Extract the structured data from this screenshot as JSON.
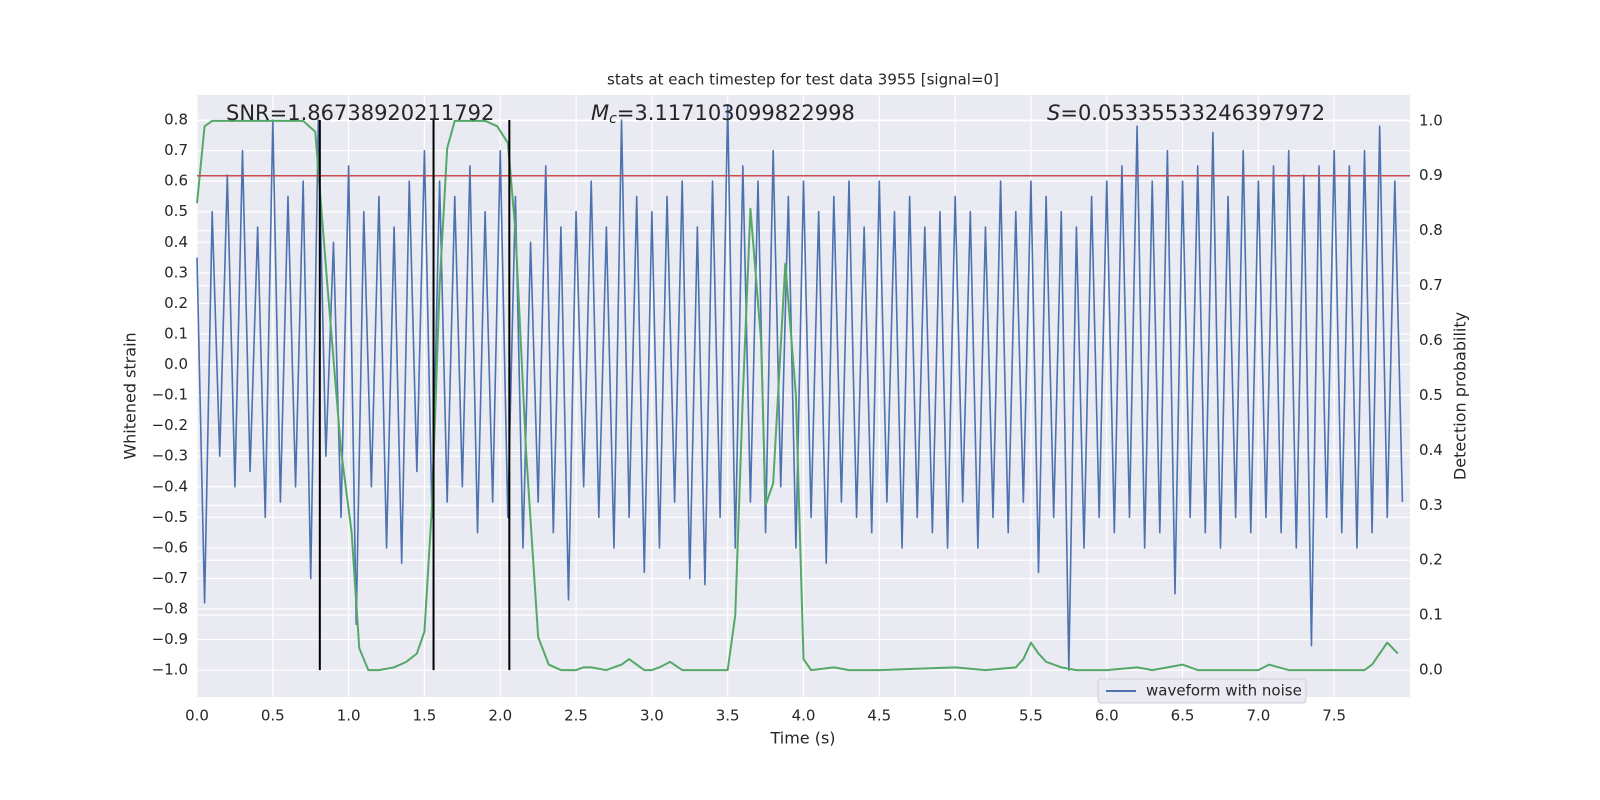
{
  "chart_data": {
    "type": "line",
    "title": "stats at each timestep for test data 3955 [signal=0]",
    "xlabel": "Time (s)",
    "ylabel": "Whitened strain",
    "y2label": "Detection probability",
    "xlim": [
      0,
      8.0
    ],
    "ylim": [
      -1.088,
      0.882
    ],
    "y2lim": [
      -0.049,
      1.047
    ],
    "xticks": [
      {
        "value": 0,
        "label": "0.0"
      },
      0.5,
      {
        "value": 1,
        "label": "1.0"
      },
      1.5,
      {
        "value": 2,
        "label": "2.0"
      },
      2.5,
      {
        "value": 3,
        "label": "3.0"
      },
      3.5,
      {
        "value": 4,
        "label": "4.0"
      },
      4.5,
      {
        "value": 5,
        "label": "5.0"
      },
      5.5,
      {
        "value": 6,
        "label": "6.0"
      },
      6.5,
      {
        "value": 7,
        "label": "7.0"
      },
      7.5
    ],
    "yticks": [
      0.8,
      0.7,
      0.6,
      0.5,
      0.4,
      0.3,
      0.2,
      0.1,
      {
        "value": 0,
        "label": "0.0"
      },
      {
        "value": -0.1,
        "label": "−0.1"
      },
      {
        "value": -0.2,
        "label": "−0.2"
      },
      {
        "value": -0.3,
        "label": "−0.3"
      },
      {
        "value": -0.4,
        "label": "−0.4"
      },
      {
        "value": -0.5,
        "label": "−0.5"
      },
      {
        "value": -0.6,
        "label": "−0.6"
      },
      {
        "value": -0.7,
        "label": "−0.7"
      },
      {
        "value": -0.8,
        "label": "−0.8"
      },
      {
        "value": -0.9,
        "label": "−0.9"
      },
      {
        "value": -1,
        "label": "−1.0"
      }
    ],
    "y2ticks": [
      {
        "value": 1,
        "label": "1.0"
      },
      0.9,
      0.8,
      0.7,
      0.6,
      0.5,
      0.4,
      0.3,
      0.2,
      0.1,
      {
        "value": 0,
        "label": "0.0"
      }
    ],
    "grid": true,
    "legend": "lower right",
    "series": [
      {
        "name": "waveform with noise",
        "color": "#4c72b0",
        "x": [
          0,
          0.05,
          0.1,
          0.15,
          0.2,
          0.25,
          0.3,
          0.35,
          0.4,
          0.45,
          0.5,
          0.55,
          0.6,
          0.65,
          0.7,
          0.75,
          0.8,
          0.85,
          0.9,
          0.95,
          1,
          1.05,
          1.1,
          1.15,
          1.2,
          1.25,
          1.3,
          1.35,
          1.4,
          1.45,
          1.5,
          1.55,
          1.6,
          1.65,
          1.7,
          1.75,
          1.8,
          1.85,
          1.9,
          1.95,
          2,
          2.05,
          2.1,
          2.15,
          2.2,
          2.25,
          2.3,
          2.35,
          2.4,
          2.45,
          2.5,
          2.55,
          2.6,
          2.65,
          2.7,
          2.75,
          2.8,
          2.85,
          2.9,
          2.95,
          3,
          3.05,
          3.1,
          3.15,
          3.2,
          3.25,
          3.3,
          3.35,
          3.4,
          3.45,
          3.5,
          3.55,
          3.6,
          3.65,
          3.7,
          3.75,
          3.8,
          3.85,
          3.9,
          3.95,
          4,
          4.05,
          4.1,
          4.15,
          4.2,
          4.25,
          4.3,
          4.35,
          4.4,
          4.45,
          4.5,
          4.55,
          4.6,
          4.65,
          4.7,
          4.75,
          4.8,
          4.85,
          4.9,
          4.95,
          5,
          5.05,
          5.1,
          5.15,
          5.2,
          5.25,
          5.3,
          5.35,
          5.4,
          5.45,
          5.5,
          5.55,
          5.6,
          5.65,
          5.7,
          5.75,
          5.8,
          5.85,
          5.9,
          5.95,
          6,
          6.05,
          6.1,
          6.15,
          6.2,
          6.25,
          6.3,
          6.35,
          6.4,
          6.45,
          6.5,
          6.55,
          6.6,
          6.65,
          6.7,
          6.75,
          6.8,
          6.85,
          6.9,
          6.95,
          7,
          7.05,
          7.1,
          7.15,
          7.2,
          7.25,
          7.3,
          7.35,
          7.4,
          7.45,
          7.5,
          7.55,
          7.6,
          7.65,
          7.7,
          7.75,
          7.8,
          7.85,
          7.9,
          7.95
        ],
        "values": [
          0.35,
          -0.78,
          0.5,
          -0.3,
          0.62,
          -0.4,
          0.7,
          -0.35,
          0.45,
          -0.5,
          0.8,
          -0.45,
          0.55,
          -0.4,
          0.6,
          -0.7,
          0.8,
          -0.3,
          0.4,
          -0.5,
          0.65,
          -0.85,
          0.5,
          -0.4,
          0.55,
          -0.6,
          0.45,
          -0.65,
          0.6,
          -0.35,
          0.7,
          -0.5,
          0.6,
          -0.45,
          0.55,
          -0.4,
          0.65,
          -0.55,
          0.5,
          -0.45,
          0.7,
          -0.5,
          0.55,
          -0.6,
          0.4,
          -0.45,
          0.65,
          -0.55,
          0.45,
          -0.77,
          0.5,
          -0.4,
          0.6,
          -0.5,
          0.45,
          -0.6,
          0.8,
          -0.5,
          0.55,
          -0.68,
          0.5,
          -0.6,
          0.55,
          -0.45,
          0.6,
          -0.7,
          0.45,
          -0.72,
          0.6,
          -0.5,
          0.85,
          -0.6,
          0.65,
          -0.45,
          0.6,
          -0.55,
          0.7,
          -0.4,
          0.55,
          -0.6,
          0.6,
          -0.5,
          0.5,
          -0.65,
          0.55,
          -0.45,
          0.6,
          -0.5,
          0.45,
          -0.55,
          0.6,
          -0.45,
          0.5,
          -0.6,
          0.55,
          -0.5,
          0.45,
          -0.55,
          0.5,
          -0.6,
          0.55,
          -0.45,
          0.5,
          -0.6,
          0.45,
          -0.5,
          0.6,
          -0.55,
          0.5,
          -0.45,
          0.6,
          -0.68,
          0.55,
          -0.5,
          0.5,
          -1.0,
          0.45,
          -0.6,
          0.55,
          -0.5,
          0.6,
          -0.55,
          0.65,
          -0.5,
          0.78,
          -0.6,
          0.6,
          -0.55,
          0.7,
          -0.75,
          0.6,
          -0.5,
          0.65,
          -0.55,
          0.76,
          -0.6,
          0.55,
          -0.5,
          0.7,
          -0.55,
          0.6,
          -0.5,
          0.65,
          -0.55,
          0.7,
          -0.6,
          0.62,
          -0.92,
          0.65,
          -0.5,
          0.7,
          -0.55,
          0.65,
          -0.6,
          0.7,
          -0.55,
          0.78,
          -0.5,
          0.6,
          -0.45
        ]
      },
      {
        "color": "#55a868",
        "axis": "y2",
        "x": [
          0,
          0.05,
          0.1,
          0.7,
          0.78,
          0.86,
          0.95,
          1.02,
          1.07,
          1.13,
          1.2,
          1.3,
          1.38,
          1.45,
          1.5,
          1.55,
          1.6,
          1.65,
          1.7,
          1.9,
          1.98,
          2.05,
          2.1,
          2.17,
          2.25,
          2.32,
          2.4,
          2.5,
          2.55,
          2.6,
          2.7,
          2.8,
          2.85,
          2.95,
          3.0,
          3.05,
          3.12,
          3.2,
          3.3,
          3.4,
          3.5,
          3.55,
          3.6,
          3.65,
          3.72,
          3.75,
          3.8,
          3.88,
          3.95,
          4.0,
          4.05,
          4.2,
          4.3,
          4.5,
          5.0,
          5.2,
          5.4,
          5.45,
          5.5,
          5.55,
          5.6,
          5.7,
          5.8,
          6.0,
          6.2,
          6.3,
          6.5,
          6.6,
          7.0,
          7.07,
          7.2,
          7.5,
          7.7,
          7.75,
          7.8,
          7.85,
          7.92
        ],
        "values": [
          0.85,
          0.99,
          1.0,
          1.0,
          0.98,
          0.7,
          0.4,
          0.25,
          0.04,
          0.0,
          0.0,
          0.005,
          0.015,
          0.03,
          0.07,
          0.3,
          0.7,
          0.95,
          1.0,
          1.0,
          0.99,
          0.96,
          0.8,
          0.4,
          0.06,
          0.01,
          0.0,
          0.0,
          0.005,
          0.005,
          0.0,
          0.01,
          0.02,
          0.0,
          0.0,
          0.005,
          0.015,
          0.0,
          0.0,
          0.0,
          0.0,
          0.1,
          0.5,
          0.84,
          0.6,
          0.3,
          0.34,
          0.74,
          0.5,
          0.02,
          0.0,
          0.005,
          0.0,
          0.0,
          0.005,
          0.0,
          0.005,
          0.02,
          0.05,
          0.03,
          0.015,
          0.005,
          0.0,
          0.0,
          0.005,
          0.0,
          0.01,
          0.0,
          0.0,
          0.01,
          0.0,
          0.0,
          0.0,
          0.01,
          0.03,
          0.05,
          0.03
        ]
      }
    ],
    "hlines": [
      {
        "y": 0.9,
        "axis": "y2",
        "color": "#c44e52"
      }
    ],
    "vlines": {
      "x": [
        0.81,
        1.56,
        2.06
      ],
      "ymin": -1.0,
      "ymax": 0.8,
      "color": "#000000"
    },
    "annotations": [
      {
        "text": "SNR=1.86738920211792"
      },
      {
        "symbol": "M",
        "subscript": "c",
        "text": "=3.117103099822998"
      },
      {
        "symbol": "S",
        "text": "=0.05335533246397972"
      }
    ]
  }
}
